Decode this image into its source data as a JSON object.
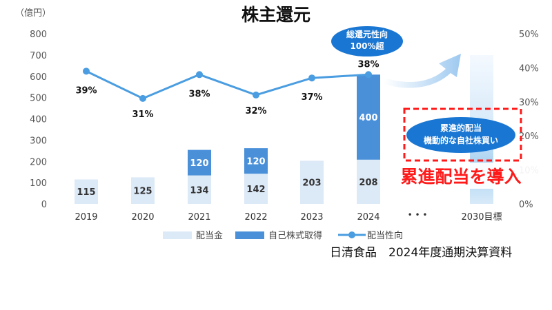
{
  "chart_data": {
    "type": "bar",
    "title": "株主還元",
    "unit_left": "（億円）",
    "categories": [
      "2019",
      "2020",
      "2021",
      "2022",
      "2023",
      "2024",
      "2030目標"
    ],
    "ylim_left": [
      0,
      800
    ],
    "yticks_left": [
      "0",
      "100",
      "200",
      "300",
      "400",
      "500",
      "600",
      "700",
      "800"
    ],
    "ylim_right": [
      0,
      50
    ],
    "yticks_right": [
      "0%",
      "10%",
      "20%",
      "30%",
      "40%",
      "50%"
    ],
    "series": [
      {
        "name": "配当金",
        "kind": "bar",
        "color": "#dce9f7",
        "values": [
          115,
          125,
          134,
          142,
          203,
          208,
          null
        ],
        "labels": [
          "115",
          "125",
          "134",
          "142",
          "203",
          "208",
          ""
        ]
      },
      {
        "name": "自己株式取得",
        "kind": "bar",
        "color": "#4a90d9",
        "values": [
          0,
          0,
          120,
          120,
          0,
          400,
          null
        ],
        "labels": [
          "",
          "",
          "120",
          "120",
          "",
          "400",
          ""
        ]
      },
      {
        "name": "配当性向",
        "kind": "line",
        "color": "#4a9de0",
        "values": [
          39,
          31,
          38,
          32,
          37,
          38,
          null
        ],
        "labels": [
          "39%",
          "31%",
          "38%",
          "32%",
          "37%",
          "38%",
          ""
        ]
      }
    ],
    "ellipsis": "• • •",
    "callout_top": [
      "総還元性向",
      "100%超"
    ],
    "callout_mid": [
      "累進的配当",
      "機動的な自社株買い"
    ],
    "highlight_text": "累進配当を導入",
    "grid": false,
    "legend": "bottom"
  },
  "source": "日清食品　2024年度通期決算資料",
  "colors": {
    "accent_red": "#ff1a1a",
    "callout_blue": "#1976d2"
  }
}
